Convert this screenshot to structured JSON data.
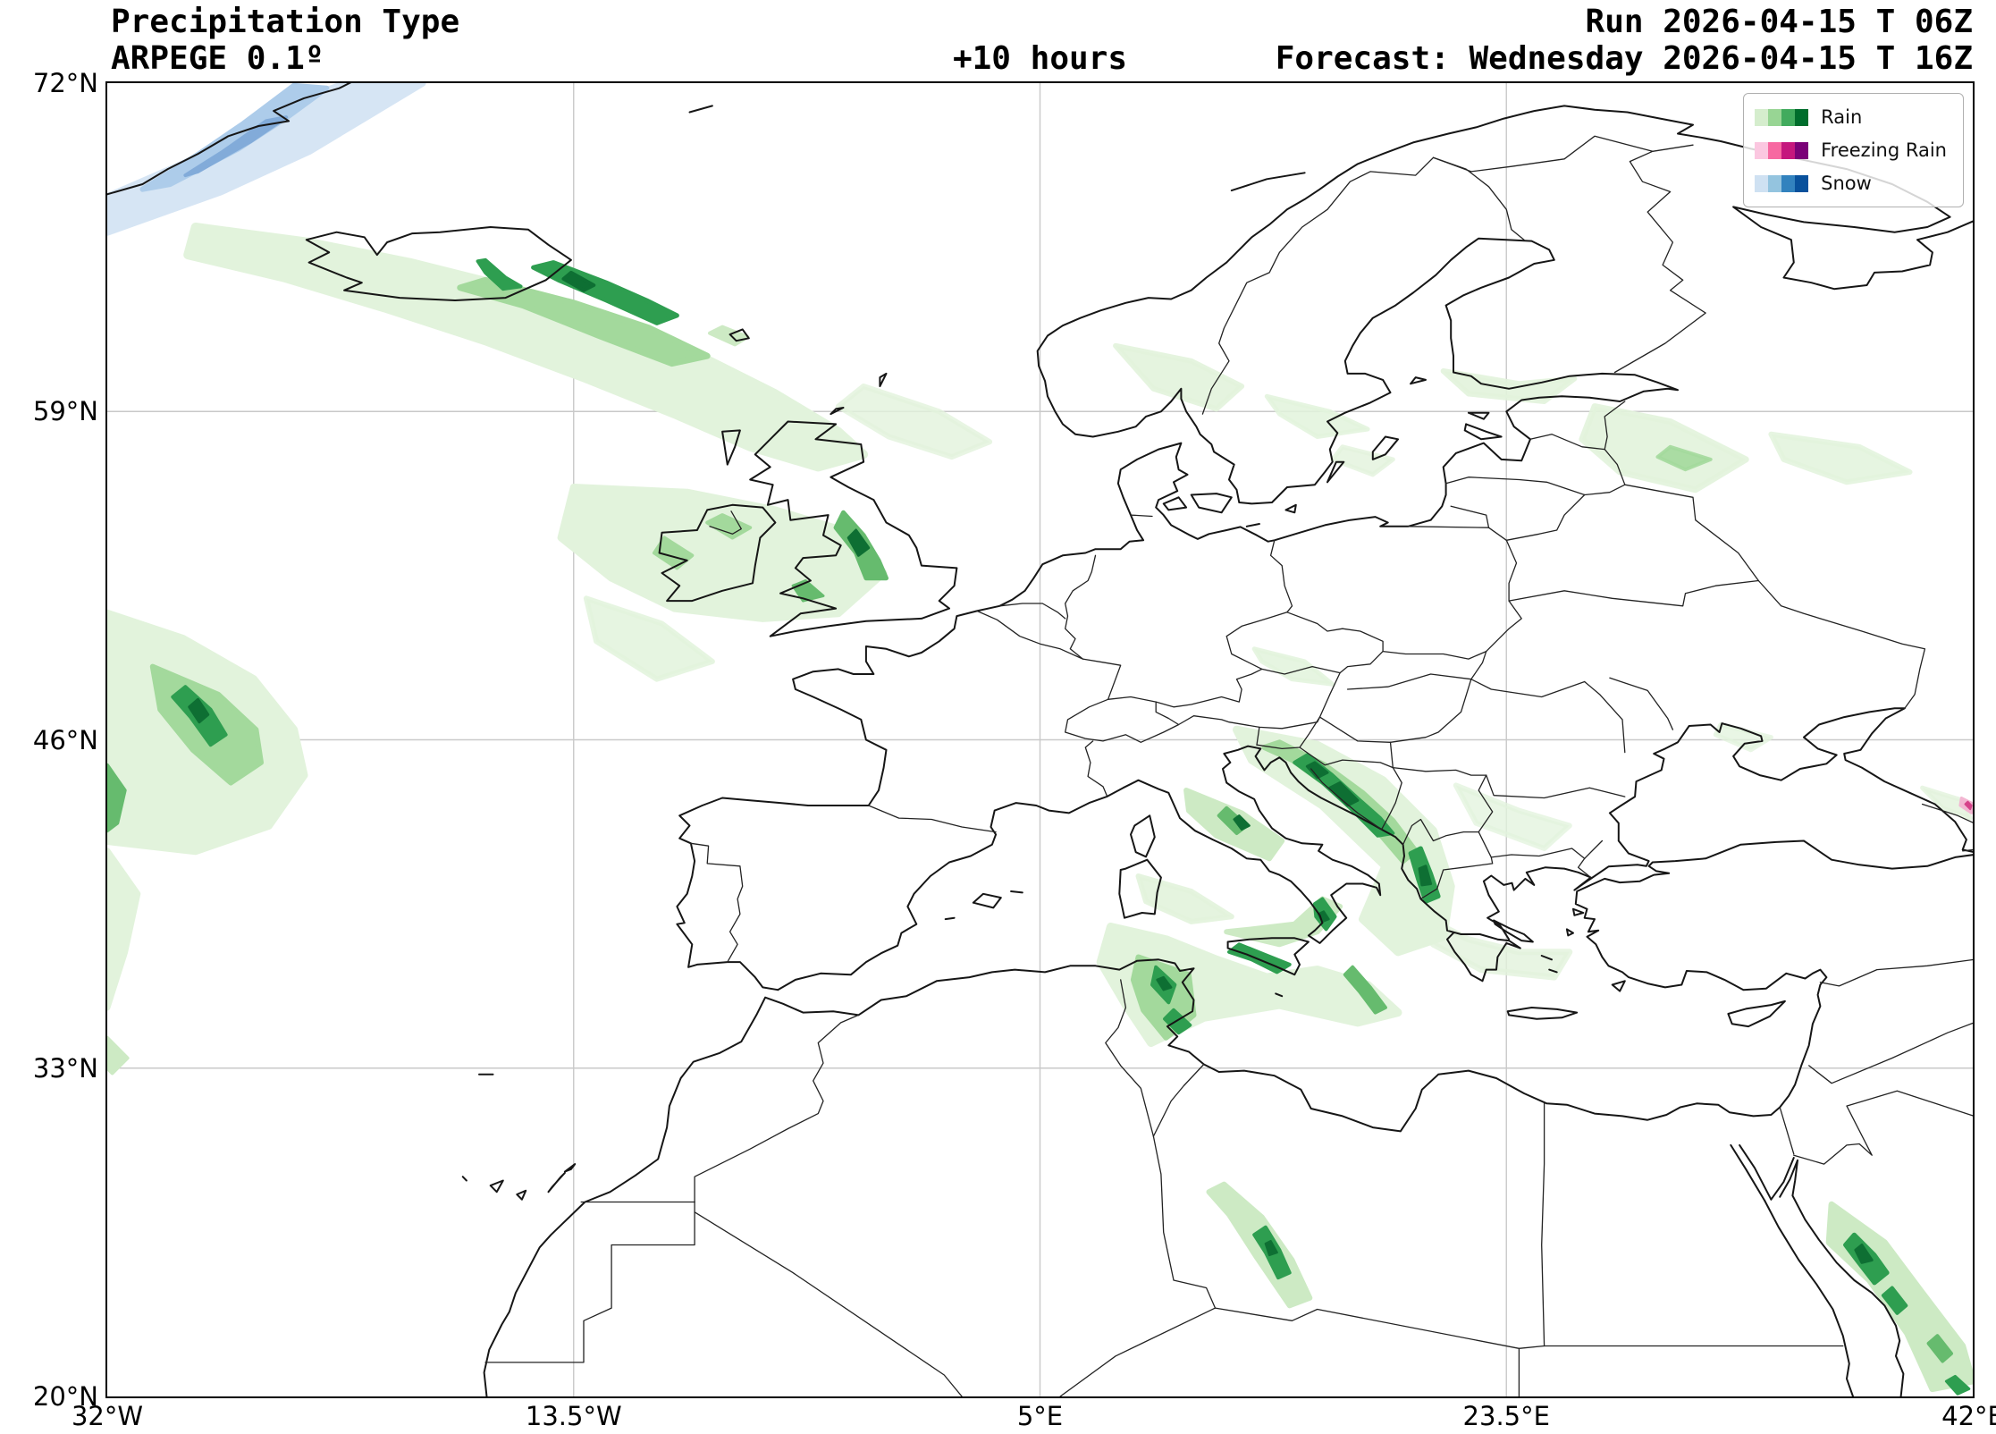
{
  "header": {
    "title": "Precipitation Type",
    "model": "ARPEGE 0.1º",
    "lead_time": "+10 hours",
    "run": "Run 2026-04-15 T 06Z",
    "forecast": "Forecast: Wednesday 2026-04-15 T 16Z"
  },
  "axes": {
    "lat_ticks": [
      "72°N",
      "59°N",
      "46°N",
      "33°N",
      "20°N"
    ],
    "lat_values": [
      72,
      59,
      46,
      33,
      20
    ],
    "lon_ticks": [
      "32°W",
      "13.5°W",
      "5°E",
      "23.5°E",
      "42°E"
    ],
    "lon_values": [
      -32,
      -13.5,
      5,
      23.5,
      42
    ]
  },
  "legend": {
    "items": [
      {
        "label": "Rain",
        "colors": [
          "#d5edcd",
          "#98d594",
          "#41ab5d",
          "#006d2c"
        ]
      },
      {
        "label": "Freezing Rain",
        "colors": [
          "#fbc7e0",
          "#f768a1",
          "#c5177d",
          "#7a0177"
        ]
      },
      {
        "label": "Snow",
        "colors": [
          "#cfe1f2",
          "#94c4df",
          "#3282be",
          "#08519c"
        ]
      }
    ]
  },
  "map": {
    "extent": {
      "lon_min": -32,
      "lon_max": 42,
      "lat_min": 20,
      "lat_max": 72
    },
    "grid": "on",
    "background": "#ffffff"
  }
}
